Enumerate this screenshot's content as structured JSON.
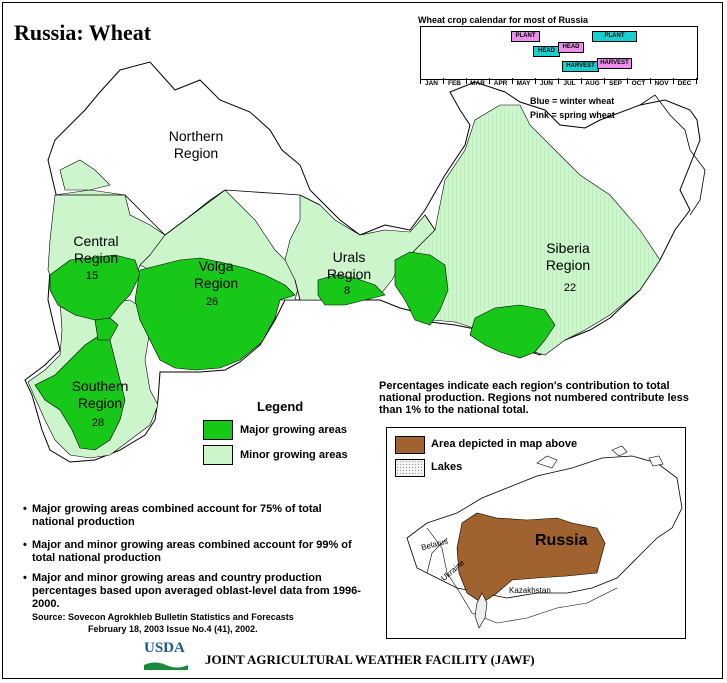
{
  "title": "Russia: Wheat",
  "calendar": {
    "title": "Wheat crop calendar for most of Russia",
    "months": [
      "JAN",
      "FEB",
      "MAR",
      "APR",
      "MAY",
      "JUN",
      "JUL",
      "AUG",
      "SEP",
      "OCT",
      "NOV",
      "DEC"
    ],
    "bars": [
      {
        "label": "PLANT",
        "type": "spring"
      },
      {
        "label": "PLANT",
        "type": "winter"
      },
      {
        "label": "HEAD",
        "type": "winter"
      },
      {
        "label": "HEAD",
        "type": "spring"
      },
      {
        "label": "HARVEST",
        "type": "winter"
      },
      {
        "label": "HARVEST",
        "type": "spring"
      }
    ],
    "note_blue": "Blue = winter wheat",
    "note_pink": "Pink = spring wheat",
    "colors": {
      "winter": "#19d0d0",
      "spring": "#e98fe9"
    }
  },
  "regions": [
    {
      "name_line1": "Northern",
      "name_line2": "Region",
      "number": ""
    },
    {
      "name_line1": "Central",
      "name_line2": "Region",
      "number": "15"
    },
    {
      "name_line1": "Volga",
      "name_line2": "Region",
      "number": "26"
    },
    {
      "name_line1": "Urals",
      "name_line2": "Region",
      "number": "8"
    },
    {
      "name_line1": "Siberia",
      "name_line2": "Region",
      "number": "22"
    },
    {
      "name_line1": "Southern",
      "name_line2": "Region",
      "number": "28"
    }
  ],
  "legend": {
    "title": "Legend",
    "major": "Major growing areas",
    "minor": "Minor growing areas",
    "colors": {
      "major": "#18c818",
      "minor": "#ccf5cc"
    }
  },
  "percent_note": "Percentages indicate each region's contribution to total national production.  Regions not numbered contribute less than 1% to the national total.",
  "bullets": [
    "Major growing areas combined account for 75% of total national production",
    "Major and minor growing areas combined account for 99% of total national production",
    "Major and minor growing areas and country production percentages based upon averaged oblast-level data from 1996-2000."
  ],
  "source_line1": "Source: Sovecon Agrokhleb Bulletin Statistics and Forecasts",
  "source_line2": "February 18, 2003 Issue No.4 (41), 2002.",
  "inset": {
    "legend_area": "Area depicted in map above",
    "legend_lakes": "Lakes",
    "label_russia": "Russia",
    "label_belarus": "Belarus",
    "label_ukraine": "Ukraine",
    "label_kazakhstan": "Kazakhstan",
    "colors": {
      "area": "#a0622e"
    }
  },
  "footer": {
    "usda": "USDA",
    "facility": "JOINT AGRICULTURAL WEATHER FACILITY (JAWF)"
  }
}
